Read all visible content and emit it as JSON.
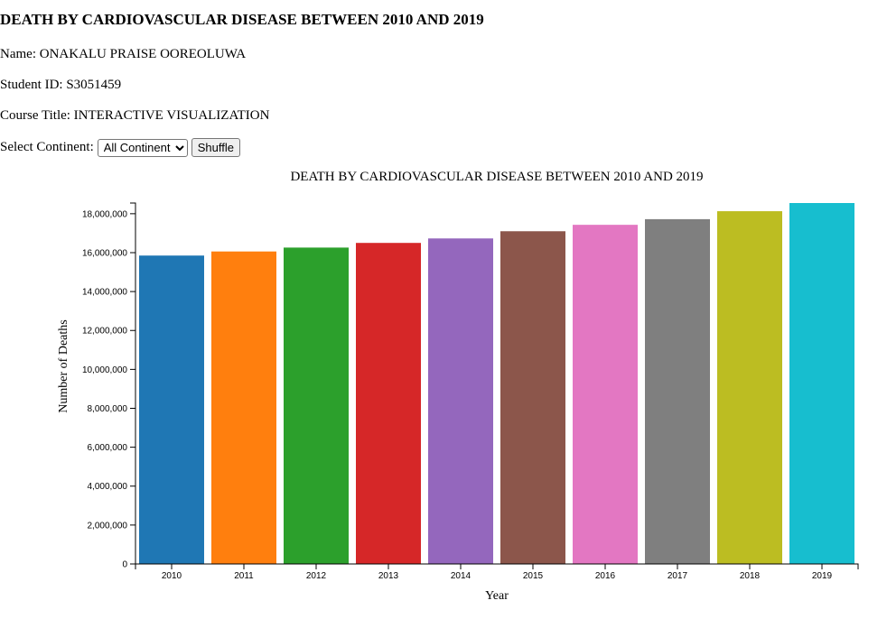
{
  "page": {
    "heading": "DEATH BY CARDIOVASCULAR DISEASE BETWEEN 2010 AND 2019",
    "name_line": "Name: ONAKALU PRAISE OOREOLUWA",
    "student_id_line": "Student ID: S3051459",
    "course_line": "Course Title: INTERACTIVE VISUALIZATION"
  },
  "controls": {
    "select_label": "Select Continent:",
    "continent_selected": "All Continent",
    "shuffle_label": "Shuffle"
  },
  "chart_data": {
    "type": "bar",
    "title": "DEATH BY CARDIOVASCULAR DISEASE BETWEEN 2010 AND 2019",
    "xlabel": "Year",
    "ylabel": "Number of Deaths",
    "categories": [
      "2010",
      "2011",
      "2012",
      "2013",
      "2014",
      "2015",
      "2016",
      "2017",
      "2018",
      "2019"
    ],
    "values": [
      15850000,
      16060000,
      16260000,
      16500000,
      16730000,
      17100000,
      17430000,
      17720000,
      18130000,
      18550000
    ],
    "colors": [
      "#1f77b4",
      "#ff7f0e",
      "#2ca02c",
      "#d62728",
      "#9467bd",
      "#8c564b",
      "#e377c2",
      "#7f7f7f",
      "#bcbd22",
      "#17becf"
    ],
    "ylim": [
      0,
      18550000
    ],
    "yticks": [
      0,
      2000000,
      4000000,
      6000000,
      8000000,
      10000000,
      12000000,
      14000000,
      16000000,
      18000000
    ],
    "ytick_labels": [
      "0",
      "2,000,000",
      "4,000,000",
      "6,000,000",
      "8,000,000",
      "10,000,000",
      "12,000,000",
      "14,000,000",
      "16,000,000",
      "18,000,000"
    ],
    "grid": false,
    "legend": "none"
  }
}
